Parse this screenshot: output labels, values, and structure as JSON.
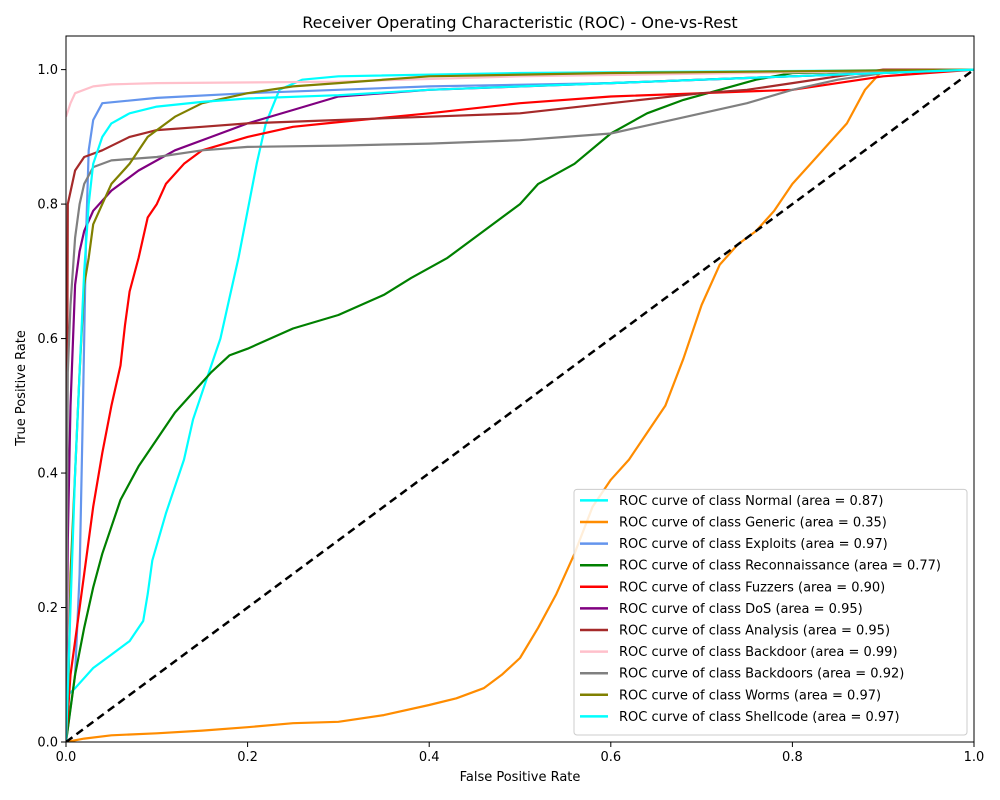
{
  "chart_data": {
    "type": "line",
    "title": "Receiver Operating Characteristic (ROC) - One-vs-Rest",
    "xlabel": "False Positive Rate",
    "ylabel": "True Positive Rate",
    "xlim": [
      0,
      1
    ],
    "ylim": [
      0,
      1.05
    ],
    "xticks": [
      "0.0",
      "0.2",
      "0.4",
      "0.6",
      "0.8",
      "1.0"
    ],
    "yticks": [
      "0.0",
      "0.2",
      "0.4",
      "0.6",
      "0.8",
      "1.0"
    ],
    "grid": false,
    "legend_position": "lower-right",
    "diagonal": {
      "color": "#000000",
      "style": "dashed"
    },
    "series": [
      {
        "name": "ROC curve of class Normal (area = 0.87)",
        "color": "#00ffff",
        "points": [
          [
            0,
            0
          ],
          [
            0.002,
            0.07
          ],
          [
            0.01,
            0.08
          ],
          [
            0.03,
            0.11
          ],
          [
            0.05,
            0.13
          ],
          [
            0.07,
            0.15
          ],
          [
            0.08,
            0.17
          ],
          [
            0.085,
            0.18
          ],
          [
            0.09,
            0.22
          ],
          [
            0.095,
            0.27
          ],
          [
            0.11,
            0.34
          ],
          [
            0.13,
            0.42
          ],
          [
            0.14,
            0.48
          ],
          [
            0.155,
            0.54
          ],
          [
            0.17,
            0.6
          ],
          [
            0.18,
            0.66
          ],
          [
            0.19,
            0.72
          ],
          [
            0.2,
            0.79
          ],
          [
            0.21,
            0.86
          ],
          [
            0.22,
            0.92
          ],
          [
            0.235,
            0.97
          ],
          [
            0.26,
            0.985
          ],
          [
            0.3,
            0.99
          ],
          [
            0.5,
            0.995
          ],
          [
            1,
            1
          ]
        ]
      },
      {
        "name": "ROC curve of class Generic (area = 0.35)",
        "color": "#ff8c00",
        "points": [
          [
            0,
            0
          ],
          [
            0.02,
            0.005
          ],
          [
            0.05,
            0.01
          ],
          [
            0.1,
            0.013
          ],
          [
            0.15,
            0.017
          ],
          [
            0.2,
            0.022
          ],
          [
            0.25,
            0.028
          ],
          [
            0.3,
            0.03
          ],
          [
            0.35,
            0.04
          ],
          [
            0.4,
            0.055
          ],
          [
            0.43,
            0.065
          ],
          [
            0.46,
            0.08
          ],
          [
            0.48,
            0.1
          ],
          [
            0.5,
            0.125
          ],
          [
            0.52,
            0.17
          ],
          [
            0.54,
            0.22
          ],
          [
            0.56,
            0.28
          ],
          [
            0.58,
            0.35
          ],
          [
            0.6,
            0.39
          ],
          [
            0.62,
            0.42
          ],
          [
            0.64,
            0.46
          ],
          [
            0.66,
            0.5
          ],
          [
            0.68,
            0.57
          ],
          [
            0.7,
            0.65
          ],
          [
            0.72,
            0.71
          ],
          [
            0.74,
            0.74
          ],
          [
            0.76,
            0.76
          ],
          [
            0.78,
            0.79
          ],
          [
            0.8,
            0.83
          ],
          [
            0.82,
            0.86
          ],
          [
            0.84,
            0.89
          ],
          [
            0.86,
            0.92
          ],
          [
            0.88,
            0.97
          ],
          [
            0.9,
            1.0
          ],
          [
            1,
            1
          ]
        ]
      },
      {
        "name": "ROC curve of class Exploits (area = 0.97)",
        "color": "#6495ed",
        "points": [
          [
            0,
            0
          ],
          [
            0.005,
            0.05
          ],
          [
            0.01,
            0.1
          ],
          [
            0.015,
            0.25
          ],
          [
            0.018,
            0.45
          ],
          [
            0.02,
            0.6
          ],
          [
            0.022,
            0.75
          ],
          [
            0.025,
            0.88
          ],
          [
            0.03,
            0.925
          ],
          [
            0.04,
            0.95
          ],
          [
            0.1,
            0.958
          ],
          [
            0.2,
            0.965
          ],
          [
            0.4,
            0.975
          ],
          [
            0.6,
            0.98
          ],
          [
            0.8,
            0.99
          ],
          [
            1,
            1
          ]
        ]
      },
      {
        "name": "ROC curve of class Reconnaissance (area = 0.77)",
        "color": "#008000",
        "points": [
          [
            0,
            0
          ],
          [
            0.01,
            0.1
          ],
          [
            0.02,
            0.17
          ],
          [
            0.03,
            0.23
          ],
          [
            0.04,
            0.28
          ],
          [
            0.05,
            0.32
          ],
          [
            0.06,
            0.36
          ],
          [
            0.08,
            0.41
          ],
          [
            0.1,
            0.45
          ],
          [
            0.12,
            0.49
          ],
          [
            0.14,
            0.52
          ],
          [
            0.16,
            0.55
          ],
          [
            0.18,
            0.575
          ],
          [
            0.2,
            0.585
          ],
          [
            0.25,
            0.615
          ],
          [
            0.3,
            0.635
          ],
          [
            0.35,
            0.665
          ],
          [
            0.38,
            0.69
          ],
          [
            0.42,
            0.72
          ],
          [
            0.46,
            0.76
          ],
          [
            0.5,
            0.8
          ],
          [
            0.52,
            0.83
          ],
          [
            0.56,
            0.86
          ],
          [
            0.6,
            0.905
          ],
          [
            0.64,
            0.935
          ],
          [
            0.68,
            0.955
          ],
          [
            0.72,
            0.97
          ],
          [
            0.76,
            0.985
          ],
          [
            0.8,
            0.995
          ],
          [
            1,
            1
          ]
        ]
      },
      {
        "name": "ROC curve of class Fuzzers (area = 0.90)",
        "color": "#ff0000",
        "points": [
          [
            0,
            0
          ],
          [
            0.005,
            0.1
          ],
          [
            0.01,
            0.15
          ],
          [
            0.02,
            0.25
          ],
          [
            0.03,
            0.35
          ],
          [
            0.04,
            0.43
          ],
          [
            0.05,
            0.5
          ],
          [
            0.06,
            0.56
          ],
          [
            0.065,
            0.62
          ],
          [
            0.07,
            0.67
          ],
          [
            0.08,
            0.72
          ],
          [
            0.09,
            0.78
          ],
          [
            0.1,
            0.8
          ],
          [
            0.11,
            0.83
          ],
          [
            0.13,
            0.86
          ],
          [
            0.15,
            0.88
          ],
          [
            0.2,
            0.9
          ],
          [
            0.25,
            0.915
          ],
          [
            0.3,
            0.922
          ],
          [
            0.4,
            0.935
          ],
          [
            0.5,
            0.95
          ],
          [
            0.6,
            0.96
          ],
          [
            0.7,
            0.965
          ],
          [
            0.8,
            0.97
          ],
          [
            0.9,
            0.99
          ],
          [
            1,
            1
          ]
        ]
      },
      {
        "name": "ROC curve of class DoS (area = 0.95)",
        "color": "#800080",
        "points": [
          [
            0,
            0
          ],
          [
            0.002,
            0.3
          ],
          [
            0.005,
            0.5
          ],
          [
            0.01,
            0.68
          ],
          [
            0.015,
            0.73
          ],
          [
            0.02,
            0.76
          ],
          [
            0.03,
            0.79
          ],
          [
            0.05,
            0.82
          ],
          [
            0.08,
            0.85
          ],
          [
            0.12,
            0.88
          ],
          [
            0.16,
            0.9
          ],
          [
            0.2,
            0.92
          ],
          [
            0.25,
            0.94
          ],
          [
            0.3,
            0.96
          ],
          [
            0.4,
            0.97
          ],
          [
            0.6,
            0.98
          ],
          [
            0.8,
            0.99
          ],
          [
            1,
            1
          ]
        ]
      },
      {
        "name": "ROC curve of class Analysis (area = 0.95)",
        "color": "#a52a2a",
        "points": [
          [
            0,
            0
          ],
          [
            0.002,
            0.8
          ],
          [
            0.01,
            0.85
          ],
          [
            0.02,
            0.87
          ],
          [
            0.04,
            0.88
          ],
          [
            0.07,
            0.9
          ],
          [
            0.1,
            0.91
          ],
          [
            0.15,
            0.915
          ],
          [
            0.2,
            0.92
          ],
          [
            0.3,
            0.925
          ],
          [
            0.4,
            0.93
          ],
          [
            0.5,
            0.935
          ],
          [
            0.6,
            0.95
          ],
          [
            0.7,
            0.965
          ],
          [
            0.75,
            0.97
          ],
          [
            0.8,
            0.98
          ],
          [
            0.85,
            0.99
          ],
          [
            0.9,
            1.0
          ],
          [
            1,
            1
          ]
        ]
      },
      {
        "name": "ROC curve of class Backdoor (area = 0.99)",
        "color": "#ffc0cb",
        "points": [
          [
            0,
            0.93
          ],
          [
            0.005,
            0.95
          ],
          [
            0.01,
            0.965
          ],
          [
            0.03,
            0.975
          ],
          [
            0.05,
            0.978
          ],
          [
            0.1,
            0.98
          ],
          [
            0.3,
            0.982
          ],
          [
            0.5,
            0.99
          ],
          [
            1,
            1
          ]
        ]
      },
      {
        "name": "ROC curve of class Backdoors (area = 0.92)",
        "color": "#808080",
        "points": [
          [
            0,
            0
          ],
          [
            0.002,
            0.55
          ],
          [
            0.005,
            0.65
          ],
          [
            0.01,
            0.75
          ],
          [
            0.015,
            0.8
          ],
          [
            0.02,
            0.83
          ],
          [
            0.03,
            0.855
          ],
          [
            0.05,
            0.865
          ],
          [
            0.1,
            0.87
          ],
          [
            0.15,
            0.88
          ],
          [
            0.2,
            0.885
          ],
          [
            0.3,
            0.887
          ],
          [
            0.4,
            0.89
          ],
          [
            0.5,
            0.895
          ],
          [
            0.55,
            0.9
          ],
          [
            0.6,
            0.905
          ],
          [
            0.65,
            0.92
          ],
          [
            0.7,
            0.935
          ],
          [
            0.75,
            0.95
          ],
          [
            0.8,
            0.97
          ],
          [
            0.85,
            0.985
          ],
          [
            0.9,
            0.995
          ],
          [
            1,
            1
          ]
        ]
      },
      {
        "name": "ROC curve of class Worms (area = 0.97)",
        "color": "#808000",
        "points": [
          [
            0,
            0
          ],
          [
            0.003,
            0.1
          ],
          [
            0.005,
            0.25
          ],
          [
            0.01,
            0.4
          ],
          [
            0.015,
            0.55
          ],
          [
            0.02,
            0.68
          ],
          [
            0.025,
            0.72
          ],
          [
            0.03,
            0.77
          ],
          [
            0.04,
            0.8
          ],
          [
            0.05,
            0.83
          ],
          [
            0.07,
            0.86
          ],
          [
            0.09,
            0.9
          ],
          [
            0.12,
            0.93
          ],
          [
            0.15,
            0.95
          ],
          [
            0.2,
            0.965
          ],
          [
            0.25,
            0.975
          ],
          [
            0.3,
            0.98
          ],
          [
            0.4,
            0.99
          ],
          [
            0.6,
            0.995
          ],
          [
            1,
            1
          ]
        ]
      },
      {
        "name": "ROC curve of class Shellcode (area = 0.97)",
        "color": "#00ffff",
        "points": [
          [
            0,
            0
          ],
          [
            0.005,
            0.2
          ],
          [
            0.01,
            0.4
          ],
          [
            0.015,
            0.55
          ],
          [
            0.02,
            0.7
          ],
          [
            0.025,
            0.8
          ],
          [
            0.03,
            0.86
          ],
          [
            0.04,
            0.9
          ],
          [
            0.05,
            0.92
          ],
          [
            0.07,
            0.935
          ],
          [
            0.1,
            0.945
          ],
          [
            0.15,
            0.952
          ],
          [
            0.2,
            0.957
          ],
          [
            0.3,
            0.962
          ],
          [
            0.4,
            0.97
          ],
          [
            0.5,
            0.975
          ],
          [
            0.6,
            0.98
          ],
          [
            0.8,
            0.99
          ],
          [
            1,
            1
          ]
        ]
      }
    ]
  }
}
